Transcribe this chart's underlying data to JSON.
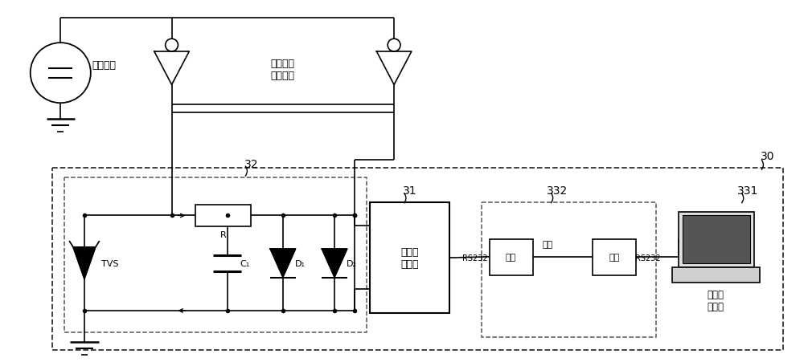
{
  "bg_color": "#ffffff",
  "line_color": "#000000",
  "fig_width": 10.0,
  "fig_height": 4.52,
  "labels": {
    "shi_ya": "施压设备",
    "bei_ce": "被测高压\n直流电缆",
    "dian_liu": "电流测\n量模块",
    "guang_xian": "光纤",
    "shu_ju": "数据采\n集单元",
    "R": "R",
    "TVS": "TVS",
    "C1": "C₁",
    "D1": "D₁",
    "D2": "D₂",
    "RS232_left": "RS232",
    "RS232_right": "RS232",
    "dian_guang": "电光",
    "guang_dian": "光电",
    "label_30": "30",
    "label_31": "31",
    "label_32": "32",
    "label_331": "331",
    "label_332": "332"
  }
}
